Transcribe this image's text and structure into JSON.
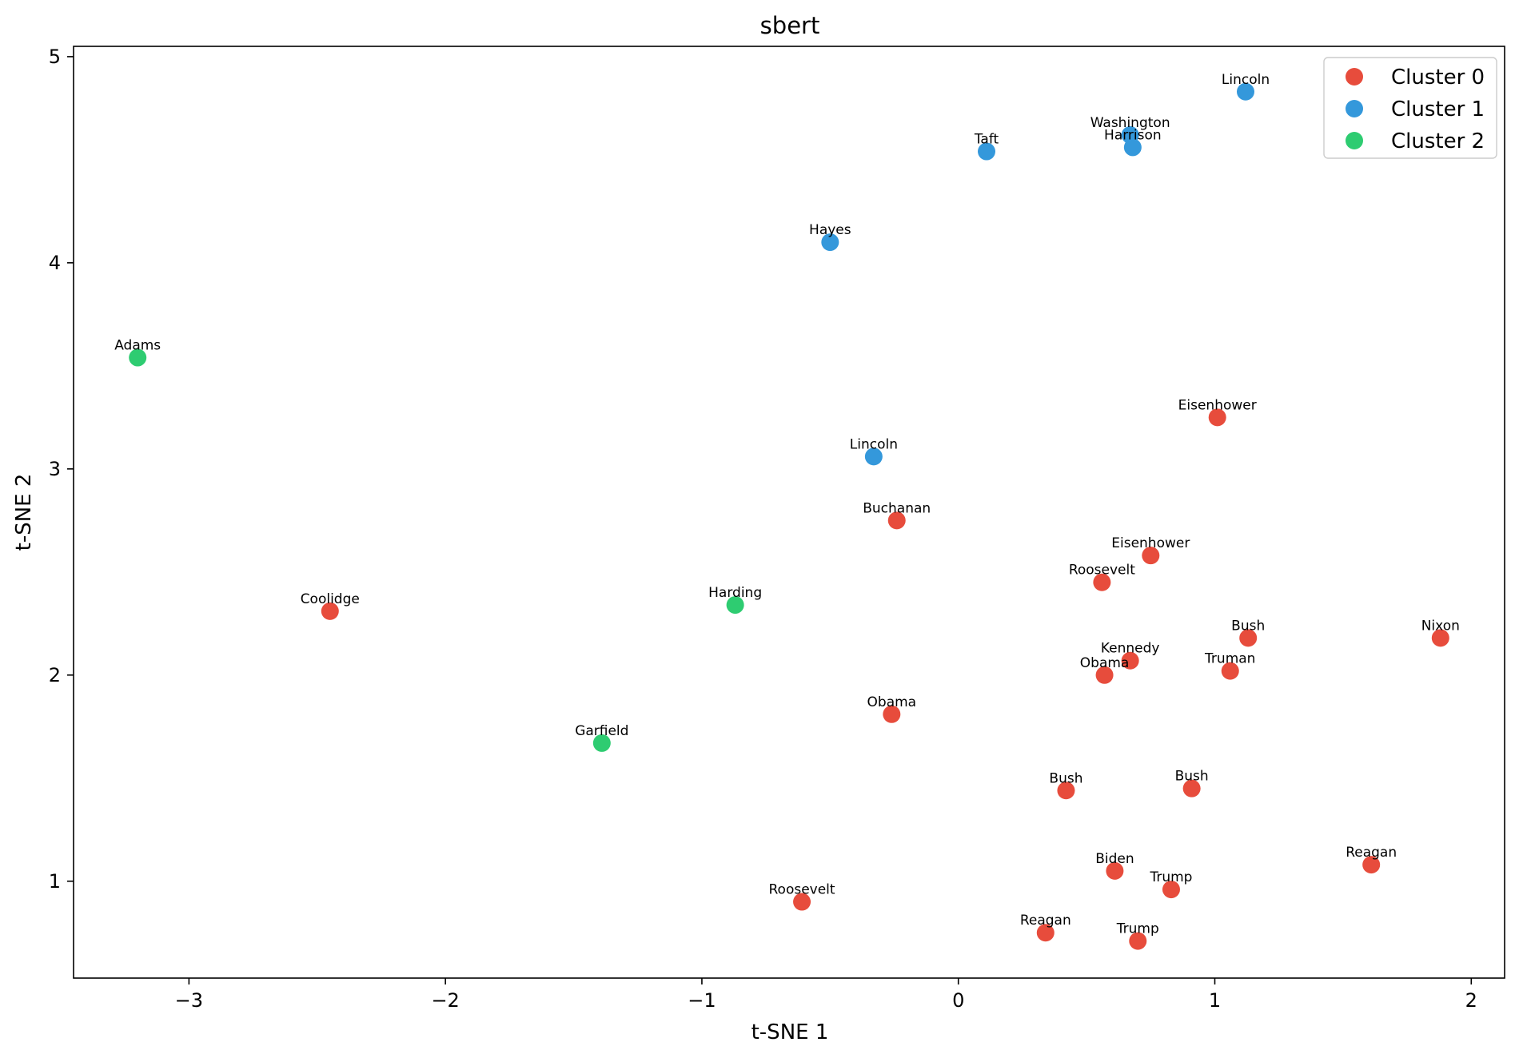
{
  "chart_data": {
    "type": "scatter",
    "title": "sbert",
    "xlabel": "t-SNE 1",
    "ylabel": "t-SNE 2",
    "xlim": [
      -3.45,
      2.13
    ],
    "ylim": [
      0.53,
      5.05
    ],
    "xticks": [
      -3,
      -2,
      -1,
      0,
      1,
      2
    ],
    "yticks": [
      1,
      2,
      3,
      4,
      5
    ],
    "xtick_labels": [
      "−3",
      "−2",
      "−1",
      "0",
      "1",
      "2"
    ],
    "ytick_labels": [
      "1",
      "2",
      "3",
      "4",
      "5"
    ],
    "grid": false,
    "legend_position": "top-right",
    "series": [
      {
        "name": "Cluster 0",
        "color": "#e74c3c",
        "points": [
          {
            "label": "Eisenhower",
            "x": 1.01,
            "y": 3.25
          },
          {
            "label": "Buchanan",
            "x": -0.24,
            "y": 2.75
          },
          {
            "label": "Eisenhower",
            "x": 0.75,
            "y": 2.58
          },
          {
            "label": "Roosevelt",
            "x": 0.56,
            "y": 2.45
          },
          {
            "label": "Coolidge",
            "x": -2.45,
            "y": 2.31
          },
          {
            "label": "Bush",
            "x": 1.13,
            "y": 2.18
          },
          {
            "label": "Nixon",
            "x": 1.88,
            "y": 2.18
          },
          {
            "label": "Kennedy",
            "x": 0.67,
            "y": 2.07
          },
          {
            "label": "Truman",
            "x": 1.06,
            "y": 2.02
          },
          {
            "label": "Obama",
            "x": 0.57,
            "y": 2.0
          },
          {
            "label": "Obama",
            "x": -0.26,
            "y": 1.81
          },
          {
            "label": "Bush",
            "x": 0.42,
            "y": 1.44
          },
          {
            "label": "Bush",
            "x": 0.91,
            "y": 1.45
          },
          {
            "label": "Reagan",
            "x": 1.61,
            "y": 1.08
          },
          {
            "label": "Biden",
            "x": 0.61,
            "y": 1.05
          },
          {
            "label": "Trump",
            "x": 0.83,
            "y": 0.96
          },
          {
            "label": "Roosevelt",
            "x": -0.61,
            "y": 0.9
          },
          {
            "label": "Reagan",
            "x": 0.34,
            "y": 0.75
          },
          {
            "label": "Trump",
            "x": 0.7,
            "y": 0.71
          }
        ]
      },
      {
        "name": "Cluster 1",
        "color": "#3498db",
        "points": [
          {
            "label": "Lincoln",
            "x": 1.12,
            "y": 4.83
          },
          {
            "label": "Washington",
            "x": 0.67,
            "y": 4.62
          },
          {
            "label": "Harrison",
            "x": 0.68,
            "y": 4.56
          },
          {
            "label": "Taft",
            "x": 0.11,
            "y": 4.54
          },
          {
            "label": "Hayes",
            "x": -0.5,
            "y": 4.1
          },
          {
            "label": "Lincoln",
            "x": -0.33,
            "y": 3.06
          }
        ]
      },
      {
        "name": "Cluster 2",
        "color": "#2ecc71",
        "points": [
          {
            "label": "Adams",
            "x": -3.2,
            "y": 3.54
          },
          {
            "label": "Harding",
            "x": -0.87,
            "y": 2.34
          },
          {
            "label": "Garfield",
            "x": -1.39,
            "y": 1.67
          }
        ]
      }
    ]
  }
}
